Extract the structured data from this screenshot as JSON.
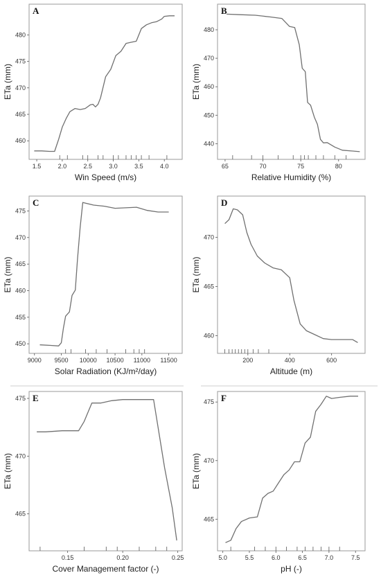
{
  "chart_data": [
    {
      "type": "line",
      "panel": "A",
      "xlabel": "Win Speed (m/s)",
      "ylabel": "ETa (mm)",
      "xlim": [
        1.35,
        4.35
      ],
      "ylim": [
        456.5,
        485.8
      ],
      "xticks": [
        1.5,
        2.0,
        2.5,
        3.0,
        3.5,
        4.0
      ],
      "xtick_labels": [
        "1.5",
        "2.0",
        "2.5",
        "3.0",
        "3.5",
        "4.0"
      ],
      "yticks": [
        460,
        465,
        470,
        475,
        480
      ],
      "ytick_labels": [
        "460",
        "465",
        "470",
        "475",
        "480"
      ],
      "rug": [
        1.95,
        2.1,
        2.4,
        2.5,
        2.7,
        2.8,
        3.0,
        3.1,
        3.25,
        3.35,
        3.45,
        3.55,
        3.7,
        4.05
      ],
      "x": [
        1.45,
        1.6,
        1.75,
        1.85,
        1.93,
        2.0,
        2.08,
        2.15,
        2.25,
        2.35,
        2.45,
        2.55,
        2.6,
        2.65,
        2.7,
        2.75,
        2.85,
        2.95,
        3.05,
        3.15,
        3.25,
        3.35,
        3.45,
        3.55,
        3.65,
        3.75,
        3.85,
        3.95,
        4.0,
        4.1,
        4.2
      ],
      "y": [
        458.1,
        458.1,
        458.0,
        458.0,
        460.3,
        462.6,
        464.3,
        465.5,
        466.1,
        465.9,
        466.1,
        466.8,
        466.9,
        466.4,
        466.9,
        468.1,
        472.1,
        473.5,
        476.1,
        476.9,
        478.4,
        478.6,
        478.8,
        481.2,
        481.9,
        482.3,
        482.5,
        483.0,
        483.5,
        483.6,
        483.6
      ]
    },
    {
      "type": "line",
      "panel": "B",
      "xlabel": "Relative Humidity (%)",
      "ylabel": "ETa (mm)",
      "xlim": [
        64,
        83.5
      ],
      "ylim": [
        434.5,
        489
      ],
      "xticks": [
        65,
        70,
        75,
        80
      ],
      "xtick_labels": [
        "65",
        "70",
        "75",
        "80"
      ],
      "yticks": [
        440,
        450,
        460,
        470,
        480
      ],
      "ytick_labels": [
        "440",
        "450",
        "460",
        "470",
        "480"
      ],
      "rug": [
        66,
        68.5,
        70,
        72,
        74,
        75,
        75.5,
        76,
        77,
        78,
        79.5,
        81
      ],
      "x": [
        65.2,
        67,
        69,
        71,
        72.5,
        73.5,
        74.2,
        74.8,
        75.2,
        75.6,
        75.9,
        76.3,
        76.8,
        77.2,
        77.6,
        78.0,
        78.5,
        79.5,
        80.5,
        82.0,
        82.8
      ],
      "y": [
        485.5,
        485.3,
        485.1,
        484.5,
        484.0,
        481.2,
        480.8,
        474.8,
        466.5,
        465.3,
        454.5,
        453.5,
        449.3,
        446.8,
        441.5,
        440.3,
        440.4,
        438.8,
        437.7,
        437.4,
        437.2
      ]
    },
    {
      "type": "line",
      "panel": "C",
      "xlabel": "Solar Radiation (KJ/m²/day)",
      "ylabel": "ETa (mm)",
      "xlim": [
        8900,
        11750
      ],
      "ylim": [
        448.2,
        477.8
      ],
      "xticks": [
        9000,
        9500,
        10000,
        10500,
        11000,
        11500
      ],
      "xtick_labels": [
        "9000",
        "9500",
        "10000",
        "10500",
        "11000",
        "11500"
      ],
      "yticks": [
        450,
        455,
        460,
        465,
        470,
        475
      ],
      "ytick_labels": [
        "450",
        "455",
        "460",
        "465",
        "470",
        "475"
      ],
      "rug": [
        9580,
        9680,
        9950,
        10150,
        10350,
        10700,
        10850,
        10950,
        11050
      ],
      "x": [
        9100,
        9300,
        9450,
        9500,
        9540,
        9580,
        9650,
        9700,
        9760,
        9800,
        9850,
        9900,
        10100,
        10300,
        10500,
        10700,
        10900,
        11100,
        11300,
        11500
      ],
      "y": [
        449.8,
        449.7,
        449.6,
        450.2,
        453.0,
        455.2,
        456.0,
        459.1,
        460.1,
        465.8,
        471.9,
        476.6,
        476.1,
        475.9,
        475.5,
        475.6,
        475.7,
        475.1,
        474.8,
        474.8
      ]
    },
    {
      "type": "line",
      "panel": "D",
      "xlabel": "Altitude (m)",
      "ylabel": "ETa (mm)",
      "xlim": [
        55,
        760
      ],
      "ylim": [
        458.2,
        474.2
      ],
      "xticks": [
        200,
        400,
        600
      ],
      "xtick_labels": [
        "200",
        "400",
        "600"
      ],
      "yticks": [
        460,
        465,
        470
      ],
      "ytick_labels": [
        "460",
        "465",
        "470"
      ],
      "rug": [
        90,
        110,
        125,
        140,
        155,
        170,
        185,
        200,
        225,
        250,
        300
      ],
      "x": [
        90,
        110,
        130,
        150,
        175,
        195,
        215,
        245,
        280,
        320,
        360,
        400,
        420,
        450,
        480,
        520,
        560,
        600,
        650,
        700,
        725
      ],
      "y": [
        471.4,
        471.8,
        472.9,
        472.8,
        472.3,
        470.5,
        469.3,
        468.1,
        467.4,
        466.9,
        466.7,
        465.9,
        463.6,
        461.2,
        460.5,
        460.1,
        459.7,
        459.6,
        459.6,
        459.6,
        459.3
      ]
    },
    {
      "type": "line",
      "panel": "E",
      "xlabel": "Cover Management factor (-)",
      "ylabel": "ETa (mm)",
      "xlim": [
        0.115,
        0.254
      ],
      "ylim": [
        461.8,
        475.6
      ],
      "xticks": [
        0.15,
        0.2,
        0.25
      ],
      "xtick_labels": [
        "0.15",
        "0.20",
        "0.25"
      ],
      "yticks": [
        465,
        470,
        475
      ],
      "ytick_labels": [
        "465",
        "470",
        "475"
      ],
      "rug": [
        0.125,
        0.165,
        0.185,
        0.195,
        0.215,
        0.23,
        0.24
      ],
      "x": [
        0.122,
        0.13,
        0.145,
        0.16,
        0.165,
        0.172,
        0.18,
        0.19,
        0.2,
        0.21,
        0.22,
        0.228,
        0.238,
        0.245,
        0.249
      ],
      "y": [
        472.1,
        472.1,
        472.2,
        472.2,
        473.0,
        474.6,
        474.6,
        474.8,
        474.9,
        474.9,
        474.9,
        474.9,
        469.0,
        465.5,
        462.7
      ]
    },
    {
      "type": "line",
      "panel": "F",
      "xlabel": "pH (-)",
      "ylabel": "ETa (mm)",
      "xlim": [
        4.9,
        7.68
      ],
      "ylim": [
        462.3,
        475.9
      ],
      "xticks": [
        5.0,
        5.5,
        6.0,
        6.5,
        7.0,
        7.5
      ],
      "xtick_labels": [
        "5.0",
        "5.5",
        "6.0",
        "6.5",
        "7.0",
        "7.5"
      ],
      "yticks": [
        465,
        470,
        475
      ],
      "ytick_labels": [
        "465",
        "470",
        "475"
      ],
      "rug": [
        5.15,
        5.6,
        5.8,
        6.0,
        6.2,
        6.4,
        6.55,
        6.7,
        6.85,
        7.0,
        7.2
      ],
      "x": [
        5.05,
        5.15,
        5.25,
        5.35,
        5.5,
        5.65,
        5.75,
        5.85,
        5.95,
        6.05,
        6.15,
        6.25,
        6.35,
        6.45,
        6.55,
        6.65,
        6.75,
        6.85,
        6.95,
        7.05,
        7.2,
        7.4,
        7.55
      ],
      "y": [
        463.0,
        463.2,
        464.2,
        464.8,
        465.1,
        465.2,
        466.8,
        467.2,
        467.4,
        468.1,
        468.8,
        469.2,
        469.9,
        469.9,
        471.5,
        472.0,
        474.2,
        474.8,
        475.5,
        475.3,
        475.4,
        475.5,
        475.5
      ]
    }
  ]
}
